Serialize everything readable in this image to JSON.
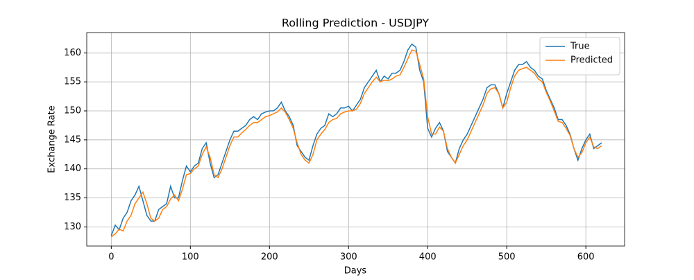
{
  "chart_data": {
    "type": "line",
    "title": "Rolling Prediction - USDJPY",
    "xlabel": "Days",
    "ylabel": "Exchange Rate",
    "x": [
      0,
      5,
      10,
      15,
      20,
      25,
      30,
      35,
      40,
      45,
      50,
      55,
      60,
      65,
      70,
      75,
      80,
      85,
      90,
      95,
      100,
      105,
      110,
      115,
      120,
      125,
      130,
      135,
      140,
      145,
      150,
      155,
      160,
      165,
      170,
      175,
      180,
      185,
      190,
      195,
      200,
      205,
      210,
      215,
      220,
      225,
      230,
      235,
      240,
      245,
      250,
      255,
      260,
      265,
      270,
      275,
      280,
      285,
      290,
      295,
      300,
      305,
      310,
      315,
      320,
      325,
      330,
      335,
      340,
      345,
      350,
      355,
      360,
      365,
      370,
      375,
      380,
      385,
      390,
      395,
      400,
      405,
      410,
      415,
      420,
      425,
      430,
      435,
      440,
      445,
      450,
      455,
      460,
      465,
      470,
      475,
      480,
      485,
      490,
      495,
      500,
      505,
      510,
      515,
      520,
      525,
      530,
      535,
      540,
      545,
      550,
      555,
      560,
      565,
      570,
      575,
      580,
      585,
      590,
      595,
      600,
      605,
      610,
      615,
      620
    ],
    "series": [
      {
        "name": "True",
        "color": "#1f77b4",
        "values": [
          128.5,
          130.3,
          129.5,
          131.5,
          132.5,
          134.5,
          135.5,
          137,
          134.5,
          132,
          131,
          131,
          133,
          133.5,
          134,
          137,
          135,
          135,
          138,
          140.5,
          139.5,
          140.5,
          141,
          143.5,
          144.5,
          141,
          138.5,
          139,
          141,
          143,
          145,
          146.5,
          146.5,
          147,
          147.5,
          148.5,
          149,
          148.5,
          149.5,
          149.8,
          150,
          150,
          150.5,
          151.5,
          150,
          149,
          147.5,
          144,
          143,
          142,
          141.5,
          144,
          146,
          147,
          147.5,
          149.5,
          149,
          149.5,
          150.5,
          150.5,
          150.8,
          150,
          151,
          152,
          154,
          155,
          156,
          157,
          155,
          156,
          155.5,
          156.5,
          156.5,
          157,
          158.5,
          160.5,
          161.5,
          161,
          157,
          155,
          147,
          145.5,
          147,
          148,
          146.5,
          143,
          142,
          141,
          143.5,
          145,
          146,
          147.5,
          149,
          150.5,
          152,
          154,
          154.5,
          154.5,
          153,
          150.5,
          153,
          155,
          157,
          158,
          158,
          158.5,
          157.5,
          157,
          156,
          155.5,
          153.5,
          152,
          150.5,
          148.5,
          148.5,
          147.5,
          146,
          143.5,
          141.5,
          143.5,
          145,
          146,
          143.5,
          144,
          144.5
        ]
      },
      {
        "name": "Predicted",
        "color": "#ff7f0e",
        "values": [
          128.3,
          128.8,
          129.6,
          129.3,
          131,
          132,
          134,
          135,
          136,
          134,
          131.5,
          131,
          131.5,
          133,
          133.5,
          134.8,
          135.5,
          134.5,
          136.5,
          139,
          139.2,
          140,
          140.5,
          142.5,
          143.8,
          142,
          139,
          138.5,
          140,
          142,
          144,
          145.5,
          145.5,
          146.2,
          146.8,
          147.5,
          148,
          148,
          148.5,
          149,
          149.2,
          149.5,
          149.8,
          150.5,
          149.8,
          148.5,
          147,
          144.5,
          142.5,
          141.5,
          141,
          142.5,
          145,
          146,
          146.8,
          148,
          148.5,
          148.7,
          149.5,
          149.8,
          150,
          150,
          150.3,
          151.3,
          153,
          154,
          155,
          155.8,
          155,
          155.3,
          155.2,
          155.5,
          156,
          156.2,
          157.5,
          159,
          160.5,
          160.3,
          158,
          155.5,
          149,
          146,
          146,
          147.2,
          146.5,
          143.5,
          142,
          141,
          142.5,
          144,
          145,
          146.5,
          148,
          149.5,
          151,
          153,
          153.8,
          154,
          153,
          150.5,
          151.5,
          154,
          156,
          157,
          157.3,
          157.5,
          157,
          156.5,
          155.5,
          155,
          153.2,
          151.7,
          150,
          148.2,
          148,
          147,
          145.8,
          143.5,
          142,
          142.8,
          144.5,
          145.5,
          143.8,
          143.5,
          144
        ]
      }
    ],
    "xlim": [
      -31,
      649
    ],
    "ylim": [
      126.7,
      163.5
    ],
    "xticks": [
      0,
      100,
      200,
      300,
      400,
      500,
      600
    ],
    "yticks": [
      130,
      135,
      140,
      145,
      150,
      155,
      160
    ],
    "grid": true,
    "legend": "upper right"
  }
}
